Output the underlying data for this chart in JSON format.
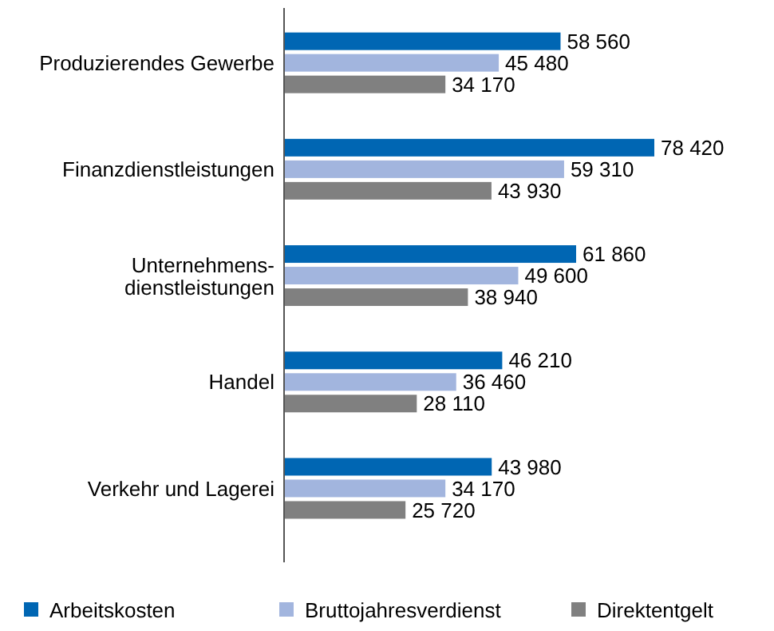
{
  "chart_data": {
    "type": "bar",
    "orientation": "horizontal",
    "categories": [
      "Produzierendes Gewerbe",
      "Finanzdienstleistungen",
      "Unternehmens-dienstleistungen",
      "Handel",
      "Verkehr und Lagerei"
    ],
    "series": [
      {
        "name": "Arbeitskosten",
        "color": "#0066b3",
        "values": [
          58560,
          78420,
          61860,
          46210,
          43980
        ],
        "value_labels": [
          "58 560",
          "78 420",
          "61 860",
          "46 210",
          "43 980"
        ]
      },
      {
        "name": "Bruttojahresverdienst",
        "color": "#a2b5de",
        "values": [
          45480,
          59310,
          49600,
          36460,
          34170
        ],
        "value_labels": [
          "45 480",
          "59 310",
          "49 600",
          "36 460",
          "34 170"
        ]
      },
      {
        "name": "Direktentgelt",
        "color": "#808080",
        "values": [
          34170,
          43930,
          38940,
          28110,
          25720
        ],
        "value_labels": [
          "34 170",
          "43 930",
          "38 940",
          "28 110",
          "25 720"
        ]
      }
    ],
    "legend": "bottom"
  }
}
